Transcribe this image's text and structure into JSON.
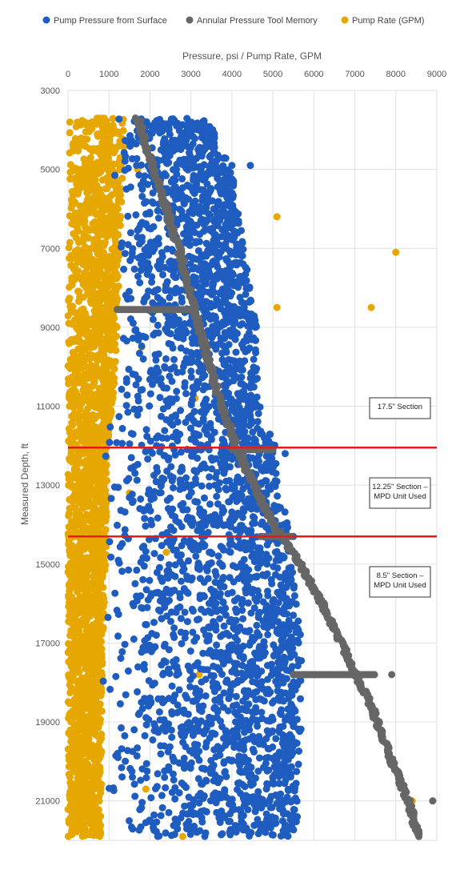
{
  "chart_data": {
    "type": "scatter",
    "title": "",
    "xlabel": "Pressure, psi / Pump Rate, GPM",
    "ylabel": "Measured Depth, ft",
    "xlim": [
      0,
      9000
    ],
    "ylim": [
      3000,
      22000
    ],
    "y_inverted": true,
    "x_ticks": [
      0,
      1000,
      2000,
      3000,
      4000,
      5000,
      6000,
      7000,
      8000,
      9000
    ],
    "y_ticks": [
      3000,
      5000,
      7000,
      9000,
      11000,
      13000,
      15000,
      17000,
      19000,
      21000
    ],
    "x_axis_position": "top",
    "grid": true,
    "legend_position": "top",
    "series": [
      {
        "name": "Pump Pressure from Surface",
        "color": "#1f5cc0",
        "envelope": [
          {
            "depth": 3700,
            "min": 1100,
            "max": 3400
          },
          {
            "depth": 5000,
            "min": 1100,
            "max": 4000
          },
          {
            "depth": 7000,
            "min": 1100,
            "max": 4300
          },
          {
            "depth": 9000,
            "min": 1100,
            "max": 4600
          },
          {
            "depth": 11000,
            "min": 1000,
            "max": 4700
          },
          {
            "depth": 12100,
            "min": 900,
            "max": 5100
          },
          {
            "depth": 14300,
            "min": 900,
            "max": 5400
          },
          {
            "depth": 17000,
            "min": 800,
            "max": 5700
          },
          {
            "depth": 19000,
            "min": 800,
            "max": 5700
          },
          {
            "depth": 21000,
            "min": 800,
            "max": 5600
          },
          {
            "depth": 21900,
            "min": 800,
            "max": 5600
          }
        ],
        "outliers": [
          {
            "x": 4450,
            "y": 4900
          },
          {
            "x": 4000,
            "y": 4900
          },
          {
            "x": 5000,
            "y": 12100
          },
          {
            "x": 5300,
            "y": 12200
          },
          {
            "x": 5500,
            "y": 14300
          },
          {
            "x": 5800,
            "y": 17800
          }
        ]
      },
      {
        "name": "Annular Pressure Tool Memory",
        "color": "#666666",
        "curve": [
          {
            "x": 1700,
            "y": 3700
          },
          {
            "x": 2100,
            "y": 5000
          },
          {
            "x": 2700,
            "y": 7000
          },
          {
            "x": 3200,
            "y": 9000
          },
          {
            "x": 3750,
            "y": 11000
          },
          {
            "x": 4300,
            "y": 12500
          },
          {
            "x": 5000,
            "y": 14000
          },
          {
            "x": 5550,
            "y": 14800
          },
          {
            "x": 6200,
            "y": 16000
          },
          {
            "x": 6900,
            "y": 17500
          },
          {
            "x": 7400,
            "y": 18600
          },
          {
            "x": 7900,
            "y": 20000
          },
          {
            "x": 8300,
            "y": 21000
          },
          {
            "x": 8550,
            "y": 21900
          }
        ],
        "horizontal_bands": [
          {
            "y": 8550,
            "x_from": 1200,
            "x_to": 3000
          },
          {
            "y": 12100,
            "x_from": 4000,
            "x_to": 5000
          },
          {
            "y": 14300,
            "x_from": 4700,
            "x_to": 5500
          },
          {
            "y": 17800,
            "x_from": 5500,
            "x_to": 7500
          }
        ],
        "outliers": [
          {
            "x": 7900,
            "y": 17800
          },
          {
            "x": 8900,
            "y": 21000
          }
        ]
      },
      {
        "name": "Pump Rate (GPM)",
        "color": "#e6a800",
        "envelope": [
          {
            "depth": 3700,
            "min": 0,
            "max": 1400
          },
          {
            "depth": 6000,
            "min": 0,
            "max": 1300
          },
          {
            "depth": 9000,
            "min": 0,
            "max": 1200
          },
          {
            "depth": 11000,
            "min": 0,
            "max": 1100
          },
          {
            "depth": 12100,
            "min": 0,
            "max": 950
          },
          {
            "depth": 14300,
            "min": 0,
            "max": 950
          },
          {
            "depth": 17000,
            "min": 0,
            "max": 850
          },
          {
            "depth": 21900,
            "min": 0,
            "max": 800
          }
        ],
        "outliers": [
          {
            "x": 1700,
            "y": 5000
          },
          {
            "x": 3600,
            "y": 6200
          },
          {
            "x": 5100,
            "y": 6200
          },
          {
            "x": 4000,
            "y": 7100
          },
          {
            "x": 8000,
            "y": 7100
          },
          {
            "x": 5100,
            "y": 8500
          },
          {
            "x": 7400,
            "y": 8500
          },
          {
            "x": 1800,
            "y": 9500
          },
          {
            "x": 3100,
            "y": 10800
          },
          {
            "x": 1500,
            "y": 13200
          },
          {
            "x": 2400,
            "y": 14700
          },
          {
            "x": 3200,
            "y": 17800
          },
          {
            "x": 1900,
            "y": 20700
          },
          {
            "x": 8400,
            "y": 21000
          },
          {
            "x": 2800,
            "y": 21900
          }
        ]
      }
    ],
    "reference_lines": [
      {
        "y": 12050,
        "color": "#e31b1b"
      },
      {
        "y": 14300,
        "color": "#e31b1b"
      }
    ],
    "annotations": [
      {
        "lines": [
          "17.5\" Section"
        ],
        "y": 11050
      },
      {
        "lines": [
          "12.25\" Section –",
          "MPD Unit Used"
        ],
        "y": 13200
      },
      {
        "lines": [
          "8.5\" Section –",
          "MPD Unit Used"
        ],
        "y": 15450
      }
    ]
  }
}
